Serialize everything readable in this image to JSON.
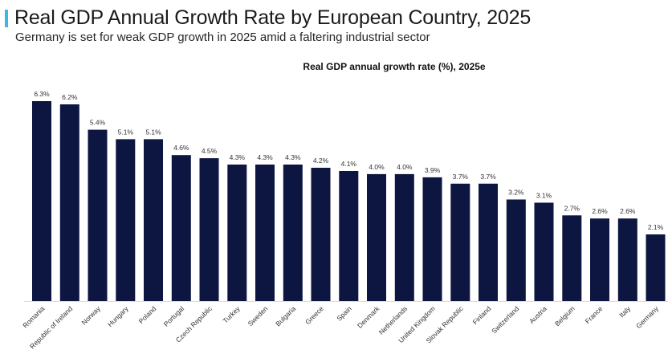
{
  "header": {
    "title": "Real GDP Annual Growth Rate by European Country, 2025",
    "subtitle": "Germany is set for weak GDP growth in 2025 amid a faltering industrial sector",
    "accent_color": "#3fb6e8"
  },
  "chart_data": {
    "type": "bar",
    "title": "Real GDP annual growth rate (%), 2025e",
    "xlabel": "",
    "ylabel": "",
    "ylim": [
      0,
      6.3
    ],
    "grid": false,
    "bar_color": "#0d1640",
    "value_suffix": "%",
    "categories": [
      "Romania",
      "Republic of Ireland",
      "Norway",
      "Hungary",
      "Poland",
      "Portugal",
      "Czech Republic",
      "Turkey",
      "Sweden",
      "Bulgaria",
      "Greece",
      "Spain",
      "Denmark",
      "Netherlands",
      "United Kingdom",
      "Slovak Republic",
      "Finland",
      "Switzerland",
      "Austria",
      "Belgium",
      "France",
      "Italy",
      "Germany"
    ],
    "values": [
      6.3,
      6.2,
      5.4,
      5.1,
      5.1,
      4.6,
      4.5,
      4.3,
      4.3,
      4.3,
      4.2,
      4.1,
      4.0,
      4.0,
      3.9,
      3.7,
      3.7,
      3.2,
      3.1,
      2.7,
      2.6,
      2.6,
      2.1
    ],
    "labels": [
      "6.3%",
      "6.2%",
      "5.4%",
      "5.1%",
      "5.1%",
      "4.6%",
      "4.5%",
      "4.3%",
      "4.3%",
      "4.3%",
      "4.2%",
      "4.1%",
      "4.0%",
      "4.0%",
      "3.9%",
      "3.7%",
      "3.7%",
      "3.2%",
      "3.1%",
      "2.7%",
      "2.6%",
      "2.6%",
      "2.1%"
    ]
  }
}
